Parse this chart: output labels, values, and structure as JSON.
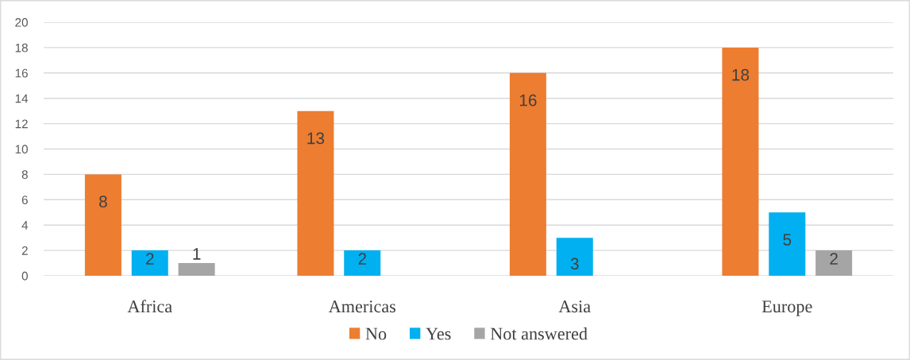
{
  "chart_data": {
    "type": "bar",
    "categories": [
      "Africa",
      "Americas",
      "Asia",
      "Europe"
    ],
    "series": [
      {
        "name": "No",
        "color": "#ed7d31",
        "values": [
          8,
          13,
          16,
          18
        ]
      },
      {
        "name": "Yes",
        "color": "#00b0f0",
        "values": [
          2,
          2,
          3,
          5
        ]
      },
      {
        "name": "Not answered",
        "color": "#a5a5a5",
        "values": [
          1,
          null,
          null,
          2
        ]
      }
    ],
    "ylim": [
      0,
      20
    ],
    "yticks": [
      0,
      2,
      4,
      6,
      8,
      10,
      12,
      14,
      16,
      18,
      20
    ],
    "grid": "y",
    "legend": "bottom",
    "data_labels": true
  }
}
